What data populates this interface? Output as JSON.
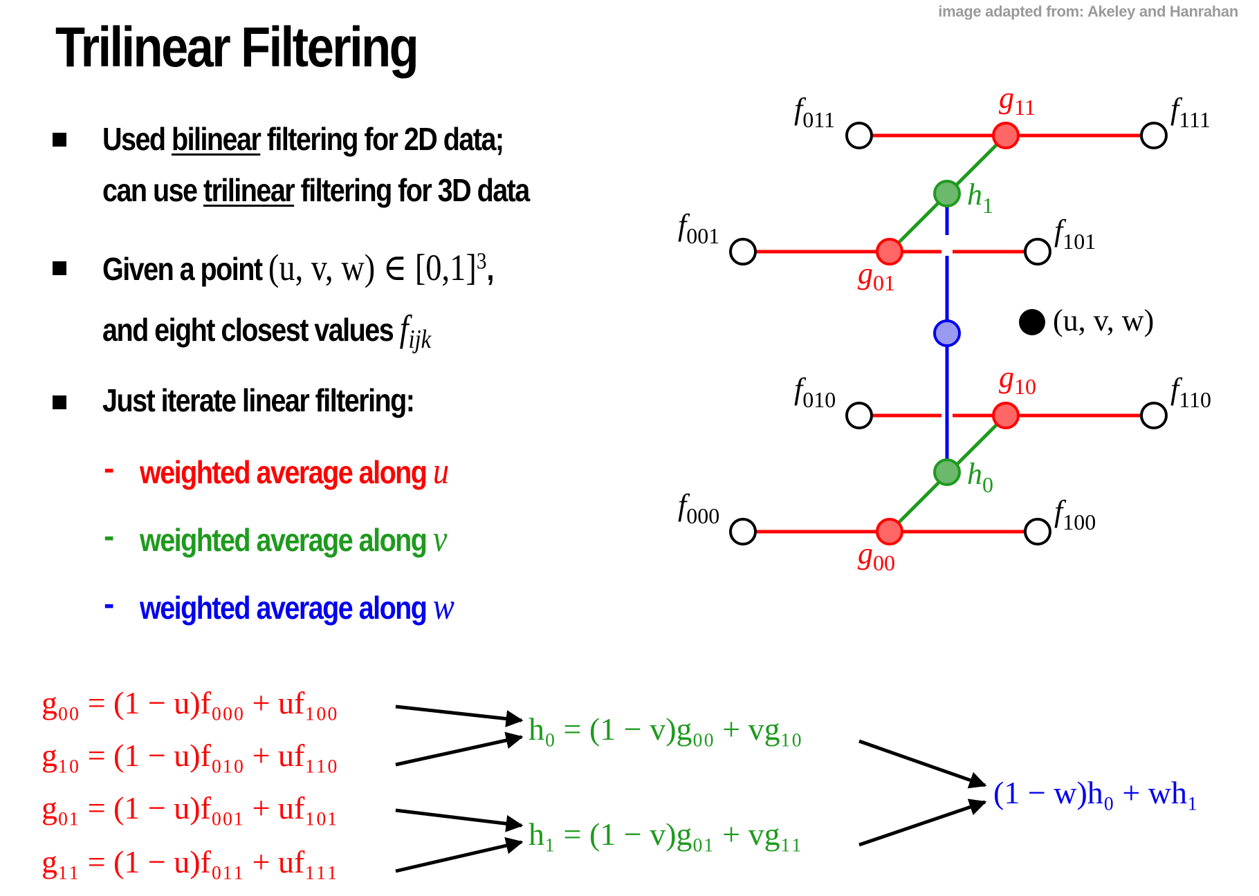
{
  "credit": "image adapted from: Akeley and Hanrahan",
  "title": "Trilinear Filtering",
  "bullets": {
    "b1": {
      "pre": "Used ",
      "u1": "bilinear",
      "mid": " filtering for 2D data;",
      "pre2": "can use ",
      "u2": "trilinear",
      "post2": " filtering for 3D data"
    },
    "b2": {
      "pre": "Given a point ",
      "math": "(u, v, w) ∈ [0,1]",
      "sup": "3",
      "post": ",",
      "line2": "and eight closest values ",
      "f": "f",
      "fsub": "ijk"
    },
    "b3": {
      "text": "Just iterate linear filtering:"
    }
  },
  "subitems": [
    {
      "dash": "-",
      "text": "weighted average along ",
      "var": "u",
      "color": "#ff0000"
    },
    {
      "dash": "-",
      "text": "weighted average along ",
      "var": "v",
      "color": "#1e9a1e"
    },
    {
      "dash": "-",
      "text": "weighted average along ",
      "var": "w",
      "color": "#0000ee"
    }
  ],
  "diagram_labels": {
    "f011": {
      "b": "f",
      "s": "011"
    },
    "f111": {
      "b": "f",
      "s": "111"
    },
    "f001": {
      "b": "f",
      "s": "001"
    },
    "f101": {
      "b": "f",
      "s": "101"
    },
    "f010": {
      "b": "f",
      "s": "010"
    },
    "f110": {
      "b": "f",
      "s": "110"
    },
    "f000": {
      "b": "f",
      "s": "000"
    },
    "f100": {
      "b": "f",
      "s": "100"
    },
    "g11": {
      "b": "g",
      "s": "11"
    },
    "g01": {
      "b": "g",
      "s": "01"
    },
    "g10": {
      "b": "g",
      "s": "10"
    },
    "g00": {
      "b": "g",
      "s": "00"
    },
    "h1": {
      "b": "h",
      "s": "1"
    },
    "h0": {
      "b": "h",
      "s": "0"
    },
    "point": "(u, v, w)"
  },
  "formulas": {
    "g00": "g₀₀ = (1 − u)f₀₀₀ + uf₁₀₀",
    "g10": "g₁₀ = (1 − u)f₀₁₀ + uf₁₁₀",
    "g01": "g₀₁ = (1 − u)f₀₀₁ + uf₁₀₁",
    "g11": "g₁₁ = (1 − u)f₀₁₁ + uf₁₁₁",
    "h0": "h₀ = (1 − v)g₀₀ + vg₁₀",
    "h1": "h₁ = (1 − v)g₀₁ + vg₁₁",
    "result": "(1 − w)h₀ + wh₁"
  },
  "colors": {
    "u_axis": "#ff0000",
    "v_axis": "#1e9a1e",
    "w_axis": "#0000ee",
    "g_node_fill": "#ff6666",
    "h_node_fill": "#6cb86c",
    "w_node_fill": "#9a9af0"
  }
}
